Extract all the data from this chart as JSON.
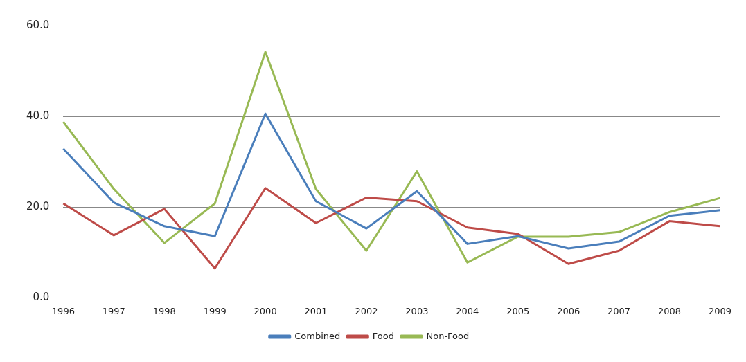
{
  "chart_data": {
    "type": "line",
    "categories": [
      "1996",
      "1997",
      "1998",
      "1999",
      "2000",
      "2001",
      "2002",
      "2003",
      "2004",
      "2005",
      "2006",
      "2007",
      "2008",
      "2009"
    ],
    "series": [
      {
        "name": "Combined",
        "color": "#4a7ebb",
        "values": [
          32.9,
          21.0,
          15.8,
          13.6,
          40.6,
          21.3,
          15.3,
          23.5,
          11.9,
          13.6,
          10.9,
          12.4,
          18.1,
          19.3
        ]
      },
      {
        "name": "Food",
        "color": "#be4b48",
        "values": [
          20.8,
          13.8,
          19.6,
          6.5,
          24.2,
          16.5,
          22.1,
          21.3,
          15.5,
          14.1,
          7.5,
          10.4,
          16.9,
          15.8
        ]
      },
      {
        "name": "Non-Food",
        "color": "#98b954",
        "values": [
          38.8,
          24.0,
          12.1,
          20.8,
          54.2,
          24.0,
          10.4,
          27.9,
          7.8,
          13.5,
          13.5,
          14.5,
          18.9,
          22.0
        ]
      }
    ],
    "ylim": [
      0,
      60
    ],
    "yticks": [
      {
        "value": 0,
        "label": "0.0"
      },
      {
        "value": 20,
        "label": "20.0"
      },
      {
        "value": 40,
        "label": "40.0"
      },
      {
        "value": 60,
        "label": "60.0"
      }
    ],
    "grid": "y",
    "legend": "bottom",
    "marker": "none",
    "line_style": "solid"
  }
}
